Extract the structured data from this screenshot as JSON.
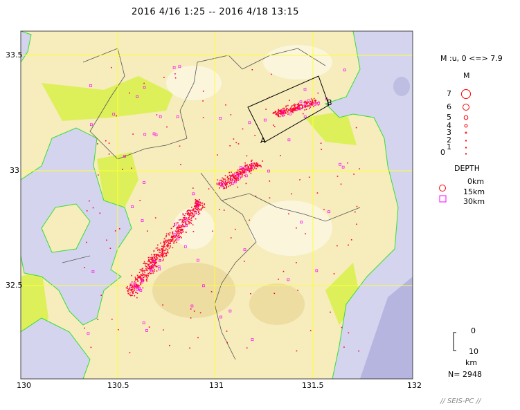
{
  "title": "2016 4/16 1:25 -- 2016 4/18 13:15",
  "map": {
    "lon_range": [
      130,
      132
    ],
    "lat_range": [
      32.095,
      33.605
    ],
    "x_ticks": [
      "130",
      "130.5",
      "131",
      "131.5",
      "132"
    ],
    "y_ticks": [
      "33.5",
      "33",
      "32.5"
    ],
    "section_labels": {
      "a": "A",
      "b": "B"
    },
    "colors": {
      "sea": "#d4d4ee",
      "land": "#f6ecbc",
      "lowland": "#ddf05a",
      "grid": "#ffff33",
      "coast": "#33dd33",
      "shallow": "#ff0033",
      "deep": "#ff00ff"
    }
  },
  "legend": {
    "magnitude_range": "M :u, 0 <=> 7.9",
    "m_title": "M",
    "m_levels": [
      "7",
      "6",
      "5",
      "4",
      "3",
      "2",
      "1",
      "0"
    ],
    "depth_title": "DEPTH",
    "depth_levels": [
      "0km",
      "15km",
      "30km"
    ],
    "scale_top": "0",
    "scale_bottom": "10",
    "scale_unit": "km",
    "count": "N= 2948"
  },
  "credit": "// SEIS-PC //"
}
